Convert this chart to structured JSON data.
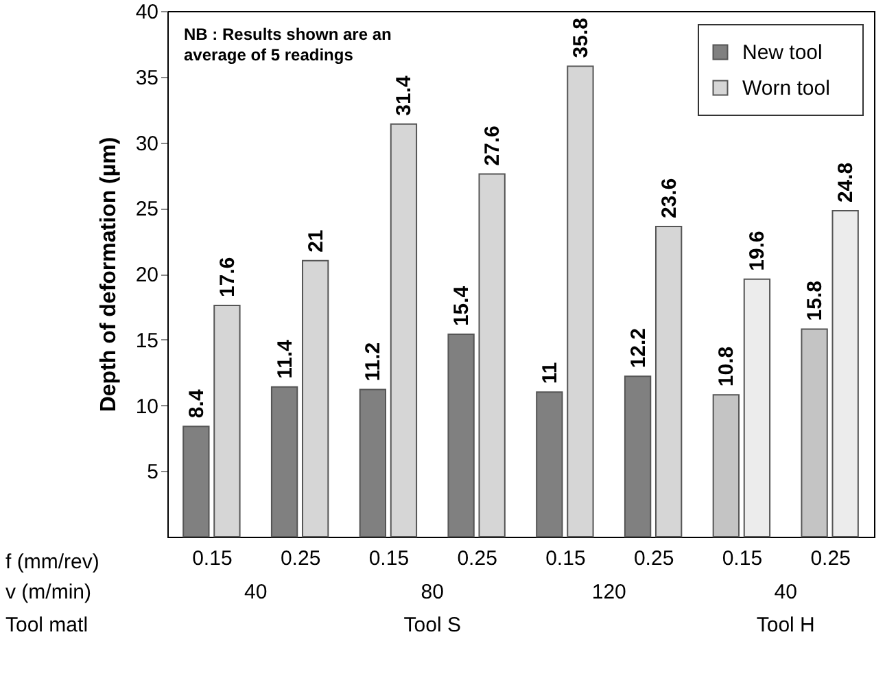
{
  "chart_data": {
    "type": "bar",
    "ylabel": "Depth of deformation (µm)",
    "categories": [
      "0.15",
      "0.25",
      "0.15",
      "0.25",
      "0.15",
      "0.25",
      "0.15",
      "0.25"
    ],
    "series": [
      {
        "name": "New tool",
        "color": "#808080",
        "colors": [
          "#808080",
          "#808080",
          "#808080",
          "#808080",
          "#808080",
          "#808080",
          "#c4c4c4",
          "#c4c4c4"
        ],
        "values": [
          8.4,
          11.4,
          11.2,
          15.4,
          11,
          12.2,
          10.8,
          15.8
        ]
      },
      {
        "name": "Worn tool",
        "color": "#d6d6d6",
        "colors": [
          "#d6d6d6",
          "#d6d6d6",
          "#d6d6d6",
          "#d6d6d6",
          "#d6d6d6",
          "#d6d6d6",
          "#ececec",
          "#ececec"
        ],
        "values": [
          17.6,
          21,
          31.4,
          27.6,
          35.8,
          23.6,
          19.6,
          24.8
        ]
      }
    ],
    "ylim": [
      0,
      40
    ],
    "yticks": [
      5,
      10,
      15,
      20,
      25,
      30,
      35,
      40
    ],
    "data_labels": true,
    "legend": "top right",
    "grid": false,
    "annotations": [
      "NB : Results shown are an average of 5 readings",
      "f (mm/rev)",
      "v (m/min)",
      "Tool matl",
      "40",
      "80",
      "120",
      "40",
      "Tool S",
      "Tool H"
    ]
  }
}
